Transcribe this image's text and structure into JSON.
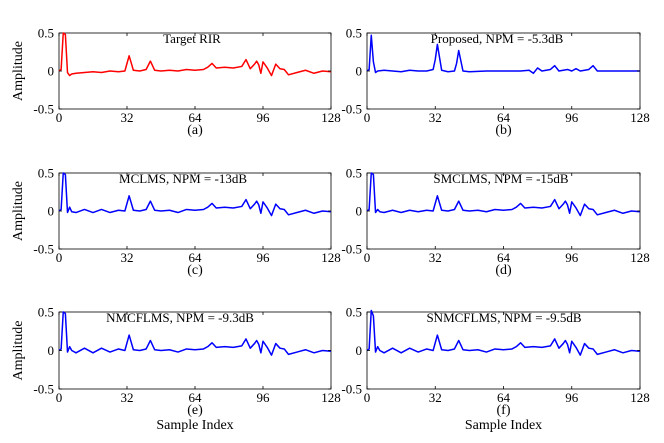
{
  "chart_data": [
    {
      "type": "line",
      "title": "Target RIR",
      "caption": "(a)",
      "ylabel": "Amplitude",
      "xlabel": "",
      "xlim": [
        0,
        128
      ],
      "ylim": [
        -0.5,
        0.5
      ],
      "xticks": [
        0,
        32,
        64,
        96,
        128
      ],
      "yticks": [
        -0.5,
        0,
        0.5
      ],
      "grid": false,
      "series": [
        {
          "color": "#ff0000",
          "x": [
            0,
            1,
            2,
            3,
            4,
            5,
            6,
            8,
            12,
            16,
            20,
            24,
            28,
            31,
            33,
            35,
            38,
            41,
            43,
            45,
            48,
            52,
            56,
            60,
            64,
            68,
            70,
            72,
            74,
            78,
            82,
            86,
            88,
            90,
            92,
            93,
            94,
            95,
            96,
            98,
            100,
            102,
            104,
            106,
            108,
            112,
            116,
            120,
            124,
            128
          ],
          "y": [
            0,
            0.02,
            0.5,
            0.48,
            -0.02,
            -0.06,
            -0.04,
            -0.03,
            -0.02,
            -0.01,
            -0.02,
            0.0,
            -0.01,
            0.0,
            0.2,
            0.01,
            0.0,
            0.02,
            0.13,
            0.01,
            0.0,
            0.01,
            0.0,
            0.02,
            0.01,
            0.02,
            0.05,
            0.1,
            0.04,
            0.05,
            0.04,
            0.06,
            0.15,
            0.03,
            0.09,
            0.13,
            0.08,
            -0.03,
            0.12,
            0.04,
            -0.06,
            0.09,
            0.03,
            0.02,
            -0.05,
            -0.02,
            0.01,
            -0.03,
            0.0,
            -0.01
          ]
        }
      ]
    },
    {
      "type": "line",
      "title": "Proposed, NPM = -5.3dB",
      "caption": "(b)",
      "ylabel": "",
      "xlabel": "",
      "xlim": [
        0,
        128
      ],
      "ylim": [
        -0.5,
        0.5
      ],
      "xticks": [
        0,
        32,
        64,
        96,
        128
      ],
      "yticks": [
        -0.5,
        0,
        0.5
      ],
      "grid": false,
      "series": [
        {
          "color": "#0000ff",
          "x": [
            0,
            1,
            2,
            3,
            4,
            5,
            8,
            12,
            16,
            20,
            24,
            28,
            31,
            32,
            33,
            35,
            38,
            41,
            42,
            43,
            45,
            48,
            56,
            64,
            72,
            76,
            78,
            80,
            82,
            86,
            88,
            90,
            94,
            96,
            98,
            100,
            102,
            104,
            106,
            108,
            112,
            116,
            120,
            124,
            128
          ],
          "y": [
            0,
            0.02,
            0.47,
            0.12,
            -0.02,
            0.0,
            0.01,
            0.0,
            -0.01,
            0.01,
            0.0,
            0.0,
            0.02,
            0.15,
            0.35,
            0.01,
            -0.01,
            0.0,
            0.1,
            0.27,
            0.0,
            -0.01,
            0.0,
            0.0,
            0.0,
            0.01,
            -0.03,
            0.04,
            0.0,
            0.02,
            0.07,
            0.0,
            0.02,
            0.0,
            0.03,
            0.0,
            0.01,
            0.02,
            0.07,
            0.0,
            0.0,
            0.0,
            0.0,
            0.0,
            0.0
          ]
        }
      ]
    },
    {
      "type": "line",
      "title": "MCLMS, NPM = -13dB",
      "caption": "(c)",
      "ylabel": "Amplitude",
      "xlabel": "",
      "xlim": [
        0,
        128
      ],
      "ylim": [
        -0.5,
        0.5
      ],
      "xticks": [
        0,
        32,
        64,
        96,
        128
      ],
      "yticks": [
        -0.5,
        0,
        0.5
      ],
      "grid": false,
      "series": [
        {
          "color": "#0000ff",
          "x": [
            0,
            1,
            2,
            3,
            4,
            5,
            6,
            8,
            12,
            16,
            20,
            24,
            28,
            31,
            33,
            35,
            38,
            41,
            43,
            45,
            48,
            52,
            56,
            60,
            64,
            68,
            70,
            72,
            74,
            78,
            82,
            86,
            88,
            90,
            92,
            93,
            94,
            95,
            96,
            98,
            100,
            102,
            104,
            106,
            108,
            112,
            116,
            120,
            124,
            128
          ],
          "y": [
            0,
            0.02,
            0.5,
            0.48,
            -0.02,
            0.05,
            -0.01,
            -0.02,
            0.02,
            -0.02,
            0.02,
            -0.02,
            0.01,
            0.0,
            0.2,
            0.01,
            0.0,
            0.02,
            0.13,
            0.01,
            0.0,
            0.01,
            -0.02,
            0.02,
            0.01,
            0.02,
            0.05,
            0.1,
            0.04,
            0.05,
            0.04,
            0.06,
            0.15,
            0.03,
            0.09,
            0.13,
            0.08,
            -0.03,
            0.12,
            0.04,
            -0.06,
            0.09,
            0.03,
            0.02,
            -0.05,
            -0.02,
            0.01,
            -0.03,
            0.0,
            -0.01
          ]
        }
      ]
    },
    {
      "type": "line",
      "title": "SMCLMS, NPM = -15dB",
      "caption": "(d)",
      "ylabel": "",
      "xlabel": "",
      "xlim": [
        0,
        128
      ],
      "ylim": [
        -0.5,
        0.5
      ],
      "xticks": [
        0,
        32,
        64,
        96,
        128
      ],
      "yticks": [
        -0.5,
        0,
        0.5
      ],
      "grid": false,
      "series": [
        {
          "color": "#0000ff",
          "x": [
            0,
            1,
            2,
            3,
            4,
            5,
            6,
            8,
            12,
            16,
            20,
            24,
            28,
            31,
            33,
            35,
            38,
            41,
            43,
            45,
            48,
            52,
            56,
            60,
            64,
            68,
            70,
            72,
            74,
            78,
            82,
            86,
            88,
            90,
            92,
            93,
            94,
            95,
            96,
            98,
            100,
            102,
            104,
            106,
            108,
            112,
            116,
            120,
            124,
            128
          ],
          "y": [
            0,
            0.02,
            0.5,
            0.48,
            -0.02,
            0.02,
            -0.01,
            -0.02,
            0.01,
            -0.02,
            0.01,
            -0.01,
            0.01,
            0.0,
            0.2,
            0.01,
            0.0,
            0.02,
            0.13,
            0.01,
            0.0,
            0.01,
            -0.01,
            0.02,
            0.01,
            0.02,
            0.05,
            0.1,
            0.04,
            0.05,
            0.04,
            0.06,
            0.15,
            0.03,
            0.09,
            0.13,
            0.08,
            -0.03,
            0.12,
            0.04,
            -0.06,
            0.09,
            0.03,
            0.02,
            -0.05,
            -0.02,
            0.01,
            -0.03,
            0.0,
            -0.01
          ]
        }
      ]
    },
    {
      "type": "line",
      "title": "NMCFLMS, NPM = -9.3dB",
      "caption": "(e)",
      "ylabel": "Amplitude",
      "xlabel": "Sample Index",
      "xlim": [
        0,
        128
      ],
      "ylim": [
        -0.5,
        0.5
      ],
      "xticks": [
        0,
        32,
        64,
        96,
        128
      ],
      "yticks": [
        -0.5,
        0,
        0.5
      ],
      "grid": false,
      "series": [
        {
          "color": "#0000ff",
          "x": [
            0,
            1,
            2,
            3,
            4,
            5,
            6,
            8,
            12,
            16,
            20,
            24,
            28,
            31,
            33,
            35,
            38,
            41,
            43,
            45,
            48,
            52,
            56,
            60,
            64,
            68,
            70,
            72,
            74,
            78,
            82,
            86,
            88,
            90,
            92,
            93,
            94,
            95,
            96,
            98,
            100,
            102,
            104,
            106,
            108,
            112,
            116,
            120,
            124,
            128
          ],
          "y": [
            0,
            0.02,
            0.5,
            0.48,
            -0.02,
            0.05,
            0.0,
            -0.03,
            0.03,
            -0.03,
            0.03,
            -0.02,
            0.02,
            0.0,
            0.2,
            0.01,
            0.0,
            0.02,
            0.13,
            0.01,
            0.0,
            0.01,
            -0.02,
            0.02,
            0.01,
            0.02,
            0.05,
            0.1,
            0.04,
            0.05,
            0.04,
            0.06,
            0.15,
            0.03,
            0.09,
            0.13,
            0.08,
            -0.03,
            0.12,
            0.04,
            -0.06,
            0.09,
            0.03,
            0.02,
            -0.05,
            -0.02,
            0.01,
            -0.03,
            0.0,
            -0.01
          ]
        }
      ]
    },
    {
      "type": "line",
      "title": "SNMCFLMS, NPM = -9.5dB",
      "caption": "(f)",
      "ylabel": "",
      "xlabel": "Sample Index",
      "xlim": [
        0,
        128
      ],
      "ylim": [
        -0.5,
        0.5
      ],
      "xticks": [
        0,
        32,
        64,
        96,
        128
      ],
      "yticks": [
        -0.5,
        0,
        0.5
      ],
      "grid": false,
      "series": [
        {
          "color": "#0000ff",
          "x": [
            0,
            1,
            2,
            3,
            4,
            5,
            6,
            8,
            12,
            16,
            20,
            24,
            28,
            31,
            33,
            35,
            38,
            41,
            43,
            45,
            48,
            52,
            56,
            60,
            64,
            68,
            70,
            72,
            74,
            78,
            82,
            86,
            88,
            90,
            92,
            93,
            94,
            95,
            96,
            98,
            100,
            102,
            104,
            106,
            108,
            112,
            116,
            120,
            124,
            128
          ],
          "y": [
            0,
            0.02,
            0.52,
            0.45,
            -0.02,
            0.05,
            0.0,
            -0.03,
            0.03,
            -0.03,
            0.03,
            -0.02,
            0.02,
            0.0,
            0.2,
            0.01,
            0.0,
            0.02,
            0.13,
            0.01,
            0.0,
            0.01,
            -0.02,
            0.02,
            0.01,
            0.02,
            0.05,
            0.1,
            0.04,
            0.05,
            0.04,
            0.06,
            0.15,
            0.03,
            0.09,
            0.13,
            0.08,
            -0.03,
            0.12,
            0.04,
            -0.06,
            0.09,
            0.03,
            0.02,
            -0.05,
            -0.02,
            0.01,
            -0.03,
            0.0,
            -0.01
          ]
        }
      ]
    }
  ]
}
